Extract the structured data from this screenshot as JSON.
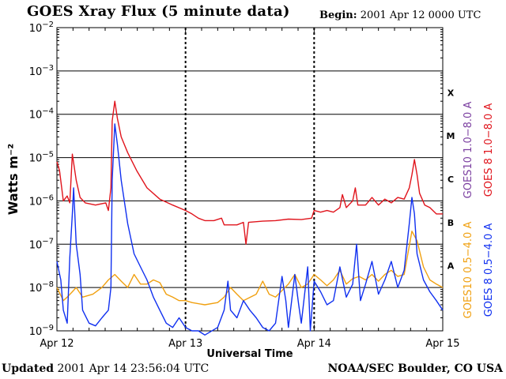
{
  "header": {
    "title": "GOES Xray Flux (5 minute data)",
    "begin_label": "Begin:",
    "begin_value": "2001 Apr 12 0000 UTC"
  },
  "footer": {
    "updated_label": "Updated",
    "updated_value": "2001 Apr 14 23:56:04 UTC",
    "credit": "NOAA/SEC Boulder, CO USA"
  },
  "colors": {
    "goes10_long": "#7b3fa0",
    "goes8_long": "#e0141c",
    "goes10_short": "#f0a010",
    "goes8_short": "#1030f0"
  },
  "chart_data": {
    "type": "line",
    "title": "GOES Xray Flux (5 minute data)",
    "xlabel": "Universal Time",
    "ylabel": "Watts m⁻²",
    "yscale": "log",
    "ylim": [
      1e-09,
      0.01
    ],
    "xlim_days": [
      0,
      3
    ],
    "x_ticks": [
      "Apr 12",
      "Apr 13",
      "Apr 14",
      "Apr 15"
    ],
    "y_ticks": [
      {
        "base": "10",
        "exp": "−2"
      },
      {
        "base": "10",
        "exp": "−3"
      },
      {
        "base": "10",
        "exp": "−4"
      },
      {
        "base": "10",
        "exp": "−5"
      },
      {
        "base": "10",
        "exp": "−6"
      },
      {
        "base": "10",
        "exp": "−7"
      },
      {
        "base": "10",
        "exp": "−8"
      },
      {
        "base": "10",
        "exp": "−9"
      }
    ],
    "flare_classes": [
      {
        "label": "X",
        "flux": 0.0001
      },
      {
        "label": "M",
        "flux": 1e-05
      },
      {
        "label": "C",
        "flux": 1e-06
      },
      {
        "label": "B",
        "flux": 1e-07
      },
      {
        "label": "A",
        "flux": 1e-08
      }
    ],
    "legend": [
      {
        "name": "GOES10 1.0−8.0 A",
        "color": "#7b3fa0"
      },
      {
        "name": "GOES 8 1.0−8.0 A",
        "color": "#e0141c"
      },
      {
        "name": "GOES10 0.5−4.0 A",
        "color": "#f0a010"
      },
      {
        "name": "GOES 8 0.5−4.0 A",
        "color": "#1030f0"
      }
    ],
    "series": [
      {
        "name": "GOES 8 1.0−8.0 A",
        "color": "#e0141c",
        "points": [
          [
            0.0,
            8e-06
          ],
          [
            0.02,
            5e-06
          ],
          [
            0.05,
            1e-06
          ],
          [
            0.08,
            1.3e-06
          ],
          [
            0.1,
            9e-07
          ],
          [
            0.12,
            1.2e-05
          ],
          [
            0.15,
            3e-06
          ],
          [
            0.18,
            1.2e-06
          ],
          [
            0.22,
            9e-07
          ],
          [
            0.3,
            8e-07
          ],
          [
            0.38,
            9e-07
          ],
          [
            0.4,
            6e-07
          ],
          [
            0.42,
            2e-06
          ],
          [
            0.43,
            7e-05
          ],
          [
            0.45,
            0.0002
          ],
          [
            0.47,
            8e-05
          ],
          [
            0.5,
            3e-05
          ],
          [
            0.55,
            1.3e-05
          ],
          [
            0.62,
            5e-06
          ],
          [
            0.7,
            2e-06
          ],
          [
            0.8,
            1.1e-06
          ],
          [
            0.9,
            8e-07
          ],
          [
            1.0,
            6e-07
          ],
          [
            1.05,
            5e-07
          ],
          [
            1.1,
            4e-07
          ],
          [
            1.15,
            3.5e-07
          ],
          [
            1.22,
            3.5e-07
          ],
          [
            1.28,
            4e-07
          ],
          [
            1.3,
            2.8e-07
          ],
          [
            1.4,
            2.8e-07
          ],
          [
            1.45,
            3.2e-07
          ],
          [
            1.47,
            1e-07
          ],
          [
            1.49,
            3.2e-07
          ],
          [
            1.6,
            3.4e-07
          ],
          [
            1.7,
            3.5e-07
          ],
          [
            1.8,
            3.8e-07
          ],
          [
            1.9,
            3.7e-07
          ],
          [
            1.98,
            4e-07
          ],
          [
            2.0,
            6e-07
          ],
          [
            2.05,
            5.5e-07
          ],
          [
            2.1,
            6e-07
          ],
          [
            2.15,
            5.5e-07
          ],
          [
            2.2,
            7e-07
          ],
          [
            2.22,
            1.4e-06
          ],
          [
            2.25,
            7e-07
          ],
          [
            2.3,
            1e-06
          ],
          [
            2.32,
            2e-06
          ],
          [
            2.34,
            8e-07
          ],
          [
            2.4,
            8e-07
          ],
          [
            2.45,
            1.2e-06
          ],
          [
            2.5,
            8e-07
          ],
          [
            2.55,
            1.1e-06
          ],
          [
            2.6,
            9e-07
          ],
          [
            2.65,
            1.2e-06
          ],
          [
            2.7,
            1.1e-06
          ],
          [
            2.74,
            2e-06
          ],
          [
            2.76,
            4e-06
          ],
          [
            2.78,
            9e-06
          ],
          [
            2.8,
            4e-06
          ],
          [
            2.82,
            1.5e-06
          ],
          [
            2.86,
            8e-07
          ],
          [
            2.9,
            7e-07
          ],
          [
            2.95,
            5e-07
          ],
          [
            3.0,
            5e-07
          ]
        ]
      },
      {
        "name": "GOES10 0.5−4.0 A",
        "color": "#f0a010",
        "points": [
          [
            0.0,
            1e-08
          ],
          [
            0.05,
            5e-09
          ],
          [
            0.08,
            6e-09
          ],
          [
            0.12,
            8e-09
          ],
          [
            0.15,
            1e-08
          ],
          [
            0.2,
            6e-09
          ],
          [
            0.28,
            7e-09
          ],
          [
            0.35,
            1e-08
          ],
          [
            0.4,
            1.5e-08
          ],
          [
            0.45,
            2e-08
          ],
          [
            0.5,
            1.4e-08
          ],
          [
            0.55,
            1e-08
          ],
          [
            0.6,
            2e-08
          ],
          [
            0.65,
            1.2e-08
          ],
          [
            0.7,
            1.2e-08
          ],
          [
            0.75,
            1.5e-08
          ],
          [
            0.8,
            1.3e-08
          ],
          [
            0.85,
            7e-09
          ],
          [
            0.9,
            6e-09
          ],
          [
            0.95,
            5e-09
          ],
          [
            1.0,
            5e-09
          ],
          [
            1.05,
            4.5e-09
          ],
          [
            1.15,
            4e-09
          ],
          [
            1.25,
            4.5e-09
          ],
          [
            1.3,
            6e-09
          ],
          [
            1.35,
            1e-08
          ],
          [
            1.4,
            7e-09
          ],
          [
            1.45,
            5e-09
          ],
          [
            1.55,
            7e-09
          ],
          [
            1.6,
            1.4e-08
          ],
          [
            1.65,
            7e-09
          ],
          [
            1.7,
            6e-09
          ],
          [
            1.8,
            1.2e-08
          ],
          [
            1.85,
            2e-08
          ],
          [
            1.9,
            1e-08
          ],
          [
            1.95,
            1.2e-08
          ],
          [
            2.0,
            2e-08
          ],
          [
            2.05,
            1.5e-08
          ],
          [
            2.1,
            1.1e-08
          ],
          [
            2.15,
            1.5e-08
          ],
          [
            2.2,
            2.5e-08
          ],
          [
            2.25,
            1.2e-08
          ],
          [
            2.3,
            1.6e-08
          ],
          [
            2.35,
            1.8e-08
          ],
          [
            2.4,
            1.5e-08
          ],
          [
            2.45,
            2e-08
          ],
          [
            2.5,
            1.4e-08
          ],
          [
            2.55,
            2e-08
          ],
          [
            2.6,
            2.5e-08
          ],
          [
            2.65,
            1.8e-08
          ],
          [
            2.7,
            2e-08
          ],
          [
            2.76,
            2e-07
          ],
          [
            2.8,
            1.2e-07
          ],
          [
            2.85,
            3e-08
          ],
          [
            2.9,
            1.5e-08
          ],
          [
            2.95,
            1.2e-08
          ],
          [
            3.0,
            1e-08
          ]
        ]
      },
      {
        "name": "GOES 8 0.5−4.0 A",
        "color": "#1030f0",
        "points": [
          [
            0.0,
            4e-08
          ],
          [
            0.03,
            1.5e-08
          ],
          [
            0.05,
            3e-09
          ],
          [
            0.08,
            1.5e-09
          ],
          [
            0.1,
            5e-08
          ],
          [
            0.12,
            5e-07
          ],
          [
            0.13,
            2e-06
          ],
          [
            0.15,
            1e-07
          ],
          [
            0.18,
            2e-08
          ],
          [
            0.2,
            3e-09
          ],
          [
            0.25,
            1.5e-09
          ],
          [
            0.3,
            1.3e-09
          ],
          [
            0.35,
            2e-09
          ],
          [
            0.4,
            3e-09
          ],
          [
            0.42,
            1e-08
          ],
          [
            0.43,
            3e-06
          ],
          [
            0.45,
            6e-05
          ],
          [
            0.47,
            2e-05
          ],
          [
            0.5,
            3e-06
          ],
          [
            0.55,
            3e-07
          ],
          [
            0.6,
            6e-08
          ],
          [
            0.65,
            3e-08
          ],
          [
            0.7,
            1.5e-08
          ],
          [
            0.75,
            6e-09
          ],
          [
            0.8,
            3e-09
          ],
          [
            0.85,
            1.5e-09
          ],
          [
            0.9,
            1.2e-09
          ],
          [
            0.95,
            2e-09
          ],
          [
            1.0,
            1.2e-09
          ],
          [
            1.05,
            1e-09
          ],
          [
            1.1,
            1e-09
          ],
          [
            1.15,
            8e-10
          ],
          [
            1.25,
            1.2e-09
          ],
          [
            1.3,
            3e-09
          ],
          [
            1.33,
            1.4e-08
          ],
          [
            1.35,
            3e-09
          ],
          [
            1.4,
            2e-09
          ],
          [
            1.45,
            5e-09
          ],
          [
            1.5,
            3e-09
          ],
          [
            1.55,
            2e-09
          ],
          [
            1.6,
            1.2e-09
          ],
          [
            1.65,
            1e-09
          ],
          [
            1.7,
            1.5e-09
          ],
          [
            1.75,
            1.8e-08
          ],
          [
            1.78,
            5e-09
          ],
          [
            1.8,
            1.2e-09
          ],
          [
            1.85,
            2e-08
          ],
          [
            1.88,
            4e-09
          ],
          [
            1.9,
            1.5e-09
          ],
          [
            1.95,
            3e-08
          ],
          [
            1.97,
            1e-09
          ],
          [
            2.0,
            1.4e-08
          ],
          [
            2.05,
            8e-09
          ],
          [
            2.1,
            4e-09
          ],
          [
            2.15,
            5e-09
          ],
          [
            2.2,
            3e-08
          ],
          [
            2.25,
            6e-09
          ],
          [
            2.3,
            1.2e-08
          ],
          [
            2.33,
            1e-07
          ],
          [
            2.36,
            5e-09
          ],
          [
            2.4,
            1.2e-08
          ],
          [
            2.45,
            4e-08
          ],
          [
            2.5,
            7e-09
          ],
          [
            2.55,
            1.5e-08
          ],
          [
            2.6,
            4e-08
          ],
          [
            2.65,
            1e-08
          ],
          [
            2.7,
            2.5e-08
          ],
          [
            2.74,
            3e-07
          ],
          [
            2.76,
            1.2e-06
          ],
          [
            2.78,
            5e-07
          ],
          [
            2.8,
            6e-08
          ],
          [
            2.85,
            1.5e-08
          ],
          [
            2.9,
            8e-09
          ],
          [
            2.95,
            5e-09
          ],
          [
            3.0,
            3e-09
          ]
        ]
      }
    ]
  }
}
